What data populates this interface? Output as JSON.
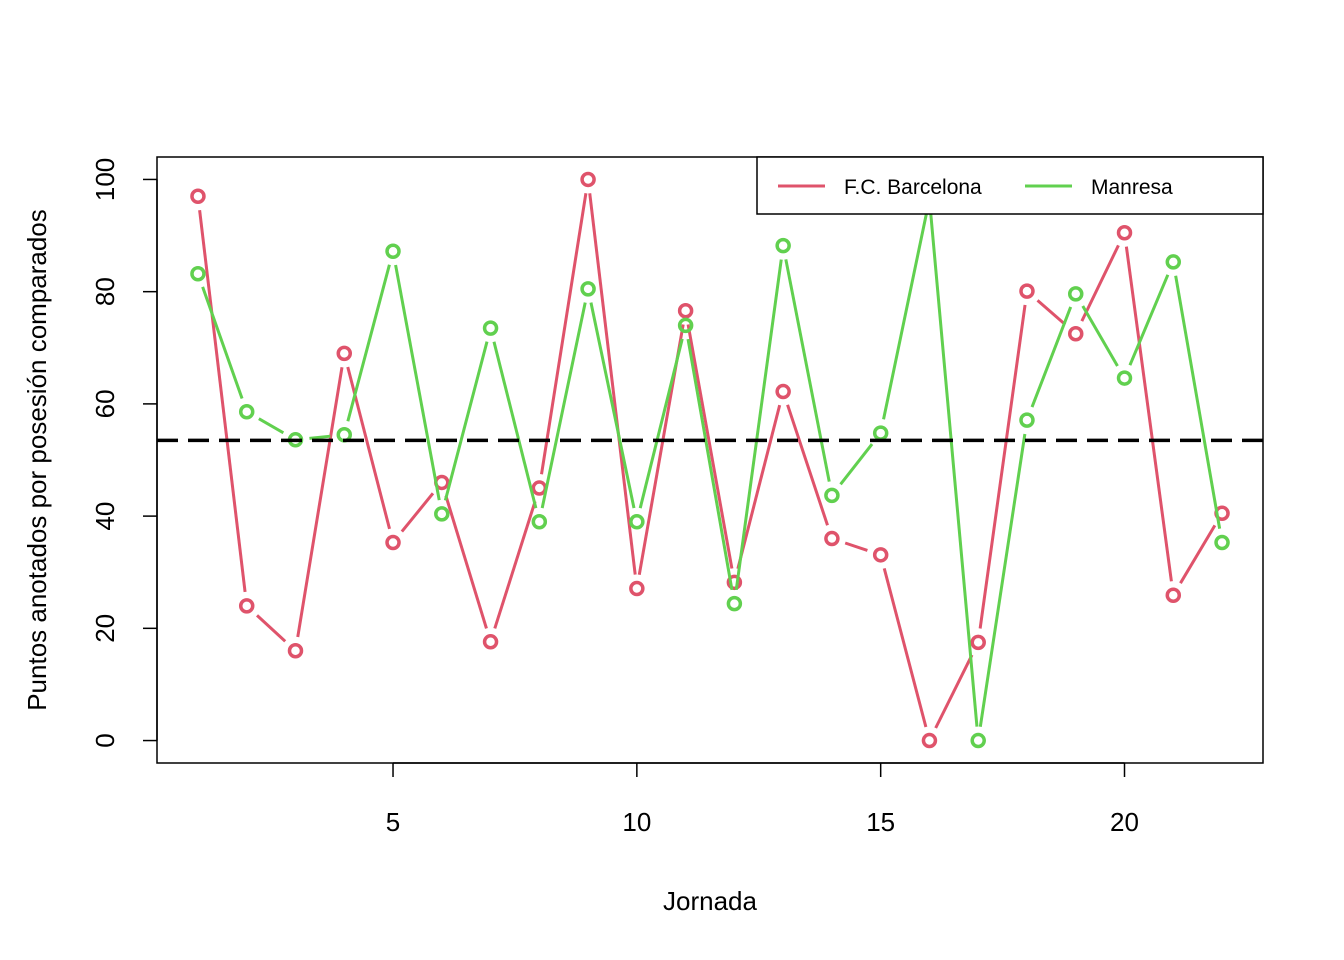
{
  "chart_data": {
    "type": "line",
    "title": "",
    "xlabel": "Jornada",
    "ylabel": "Puntos anotados por posesión comparados",
    "xlim": [
      0.16,
      22.84
    ],
    "ylim": [
      -4,
      104
    ],
    "xticks": [
      5,
      10,
      15,
      20
    ],
    "yticks": [
      0,
      20,
      40,
      60,
      80,
      100
    ],
    "grid": false,
    "legend_position": "top-right",
    "x": [
      1,
      2,
      3,
      4,
      5,
      6,
      7,
      8,
      9,
      10,
      11,
      12,
      13,
      14,
      15,
      16,
      17,
      18,
      19,
      20,
      21,
      22
    ],
    "reference_line": {
      "y": 53.5,
      "style": "dashed",
      "color": "#000000"
    },
    "series": [
      {
        "name": "F.C. Barcelona",
        "color": "#DF536B",
        "values": [
          97,
          24,
          16,
          69,
          35.3,
          46,
          17.6,
          45,
          100,
          27.1,
          76.6,
          28.2,
          62.2,
          36,
          33.1,
          0,
          17.5,
          80.1,
          72.5,
          90.5,
          25.9,
          40.5
        ]
      },
      {
        "name": "Manresa",
        "color": "#61D04F",
        "values": [
          83.2,
          58.6,
          53.6,
          54.5,
          87.2,
          40.4,
          73.5,
          39,
          80.5,
          39,
          74,
          24.4,
          88.2,
          43.7,
          54.8,
          96.5,
          0,
          57.1,
          79.6,
          64.6,
          85.3,
          35.3
        ]
      }
    ]
  }
}
